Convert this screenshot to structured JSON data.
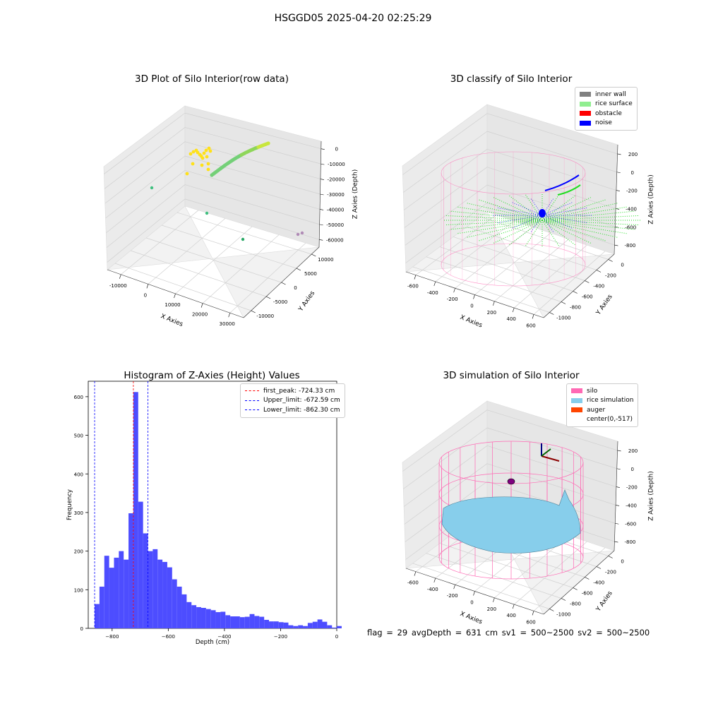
{
  "figure_title": "HSGGD05 2025-04-20 02:25:29",
  "footer_text": "flag = 29  avgDepth = 631 cm  sv1 = 500~2500  sv2 = 500~2500",
  "colors": {
    "hist_bar": "#4d4dff",
    "peak_line": "#ff0000",
    "limit_line": "#0000ff",
    "inner_wall": "#808080",
    "rice_surface": "#90ee90",
    "obstacle": "#ff0000",
    "noise": "#0000ff",
    "silo": "#ff69b4",
    "rice_simulation": "#87ceeb",
    "auger": "#ff4500",
    "pane": "#ebebeb"
  },
  "chart_data": [
    {
      "type": "scatter",
      "title": "3D Plot of Silo Interior(row data)",
      "xlabel": "X Axies",
      "ylabel": "Y Axies",
      "zlabel": "Z Axies (Depth)",
      "x_ticks": [
        "-10000",
        "0",
        "10000",
        "20000",
        "30000"
      ],
      "y_ticks": [
        "-10000",
        "-5000",
        "0",
        "5000",
        "10000"
      ],
      "z_ticks": [
        "-60000",
        "-50000",
        "-40000",
        "-30000",
        "-20000",
        "-10000",
        "0"
      ],
      "note": "3D point cloud; points colored by value (yellow cluster near top, green arc, scattered green and purple outliers)"
    },
    {
      "type": "scatter",
      "title": "3D classify of Silo Interior",
      "xlabel": "X Axies",
      "ylabel": "Y Axies",
      "zlabel": "Z Axies (Depth)",
      "x_ticks": [
        "-600",
        "-400",
        "-200",
        "0",
        "200",
        "400",
        "600"
      ],
      "y_ticks": [
        "-1000",
        "-800",
        "-600",
        "-400",
        "-200",
        "0"
      ],
      "z_ticks": [
        "-800",
        "-600",
        "-400",
        "-200",
        "0",
        "200"
      ],
      "legend": [
        "inner wall",
        "rice surface",
        "obstacle",
        "noise"
      ]
    },
    {
      "type": "bar",
      "title": "Histogram of Z-Axies (Height) Values",
      "xlabel": "Depth (cm)",
      "ylabel": "Frequency",
      "xlim": [
        -885,
        0
      ],
      "ylim": [
        0,
        640
      ],
      "x_ticks": [
        "-800",
        "-600",
        "-400",
        "-200",
        "0"
      ],
      "y_ticks": [
        "0",
        "100",
        "200",
        "300",
        "400",
        "500",
        "600"
      ],
      "bin_start": -862.3,
      "bin_width": 17.25,
      "values": [
        63,
        108,
        188,
        157,
        183,
        200,
        178,
        298,
        612,
        328,
        246,
        200,
        205,
        178,
        172,
        158,
        127,
        108,
        88,
        68,
        60,
        55,
        53,
        50,
        47,
        42,
        43,
        34,
        31,
        31,
        29,
        30,
        37,
        32,
        30,
        22,
        18,
        18,
        16,
        15,
        8,
        6,
        8,
        6,
        14,
        17,
        23,
        17,
        8,
        2,
        6
      ],
      "lines": [
        {
          "label": "first_peak: -724.33 cm",
          "x": -724.33,
          "color": "red"
        },
        {
          "label": "Upper_limit: -672.59 cm",
          "x": -672.59,
          "color": "blue"
        },
        {
          "label": "Lower_limit: -862.30 cm",
          "x": -862.3,
          "color": "blue"
        }
      ]
    },
    {
      "type": "area",
      "title": "3D simulation of Silo Interior",
      "xlabel": "X Axies",
      "ylabel": "Y Axies",
      "zlabel": "Z Axies (Depth)",
      "x_ticks": [
        "-600",
        "-400",
        "-200",
        "0",
        "200",
        "400",
        "600"
      ],
      "y_ticks": [
        "-1000",
        "-800",
        "-600",
        "-400",
        "-200",
        "0"
      ],
      "z_ticks": [
        "-800",
        "-600",
        "-400",
        "-200",
        "0",
        "200"
      ],
      "legend": [
        "silo",
        "rice simulation",
        "auger",
        "center(0,-517)"
      ]
    }
  ]
}
